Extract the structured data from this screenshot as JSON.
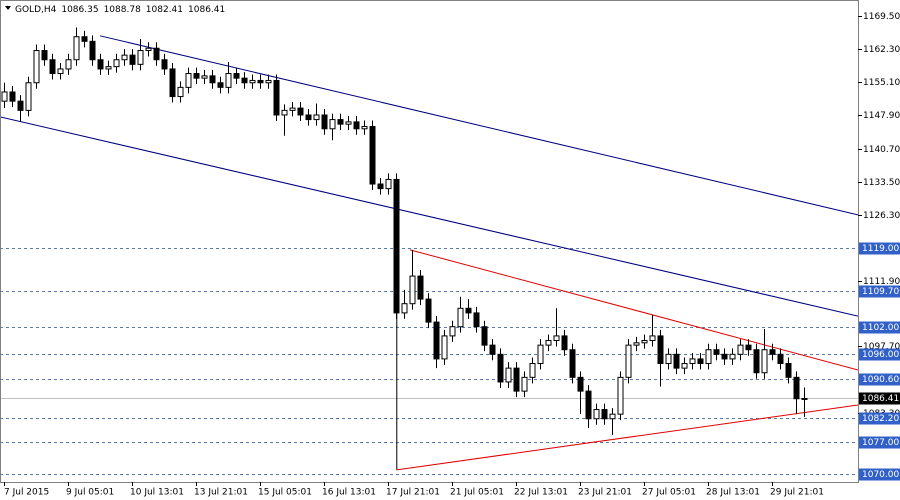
{
  "chart_data": {
    "type": "candlestick",
    "title": "GOLD,H4",
    "categories": [
      "7 Jul 2015",
      null,
      null,
      null,
      null,
      null,
      null,
      null,
      "9 Jul 05:01",
      null,
      null,
      null,
      null,
      null,
      null,
      null,
      "10 Jul 13:01",
      null,
      null,
      null,
      null,
      null,
      null,
      null,
      "13 Jul 21:01",
      null,
      null,
      null,
      null,
      null,
      null,
      null,
      "15 Jul 05:01",
      null,
      null,
      null,
      null,
      null,
      null,
      null,
      "16 Jul 13:01",
      null,
      null,
      null,
      null,
      null,
      null,
      null,
      "17 Jul 21:01",
      null,
      null,
      null,
      null,
      null,
      null,
      null,
      "21 Jul 05:01",
      null,
      null,
      null,
      null,
      null,
      null,
      null,
      "22 Jul 13:01",
      null,
      null,
      null,
      null,
      null,
      null,
      null,
      "23 Jul 21:01",
      null,
      null,
      null,
      null,
      null,
      null,
      null,
      "27 Jul 05:01",
      null,
      null,
      null,
      null,
      null,
      null,
      null,
      "28 Jul 13:01",
      null,
      null,
      null,
      null,
      null,
      null,
      null,
      "29 Jul 21:01",
      null,
      null,
      null,
      null
    ],
    "open": [
      1151,
      1153,
      1151,
      1149,
      1155,
      1162,
      1160,
      1157,
      1158,
      1160,
      1165,
      1164,
      1160,
      1158,
      1158.5,
      1160,
      1161,
      1159,
      1162,
      1162.5,
      1160,
      1158,
      1152,
      1154,
      1157,
      1156,
      1156.5,
      1155,
      1154,
      1157,
      1156,
      1155,
      1155.5,
      1155,
      1155.5,
      1148,
      1149,
      1149.5,
      1148,
      1147,
      1148,
      1145,
      1147,
      1146,
      1146.5,
      1145,
      1145.5,
      1133,
      1132,
      1134,
      1105,
      1107,
      1113,
      1108,
      1103,
      1095,
      1100,
      1102,
      1106,
      1105,
      1102,
      1098,
      1096,
      1090,
      1093,
      1088,
      1091,
      1094,
      1098,
      1099,
      1100,
      1097,
      1091,
      1088,
      1082,
      1084,
      1082,
      1083,
      1091,
      1098,
      1098.5,
      1099,
      1100,
      1094,
      1096,
      1093,
      1094,
      1095,
      1094,
      1097,
      1096,
      1095,
      1096,
      1098,
      1097,
      1092,
      1097,
      1096,
      1094,
      1091,
      1086.35
    ],
    "high": [
      1155,
      1154.3,
      1152.3,
      1156.3,
      1163.3,
      1163.3,
      1161.3,
      1159.3,
      1161.3,
      1167,
      1166.3,
      1165.3,
      1161.3,
      1159.8,
      1161.3,
      1162.3,
      1162.3,
      1164.5,
      1163.8,
      1163.8,
      1161.3,
      1159.3,
      1155.3,
      1158.3,
      1158.3,
      1157.8,
      1157.8,
      1156.3,
      1159.5,
      1158.3,
      1157.3,
      1156.8,
      1156.8,
      1156.8,
      1156.8,
      1150.3,
      1150.8,
      1150.8,
      1149.3,
      1150.5,
      1149.3,
      1148.3,
      1148.3,
      1147.8,
      1147.8,
      1146.8,
      1146.8,
      1134.3,
      1135.3,
      1135.3,
      1110,
      1118.7,
      1114.3,
      1109.3,
      1104.3,
      1101.3,
      1103.3,
      1108.5,
      1108,
      1106.3,
      1103.3,
      1099.3,
      1097.3,
      1094.3,
      1094.3,
      1092.3,
      1095.3,
      1099.3,
      1100.3,
      1106,
      1101.3,
      1098.3,
      1092.3,
      1089.3,
      1085.3,
      1085.3,
      1084.3,
      1092.3,
      1099.3,
      1099.8,
      1100.3,
      1104.6,
      1101.3,
      1097.3,
      1097.3,
      1095.3,
      1096.3,
      1096.3,
      1098.3,
      1098.3,
      1097.3,
      1097.3,
      1099.3,
      1099.3,
      1098.3,
      1101.5,
      1098.3,
      1097.3,
      1095.3,
      1092.3,
      1088.78
    ],
    "low": [
      1149.5,
      1149.7,
      1146.5,
      1147.7,
      1153.7,
      1158.7,
      1155.7,
      1155.7,
      1156.7,
      1158.7,
      1162.7,
      1158.7,
      1156.7,
      1156.7,
      1157.2,
      1158.7,
      1157.7,
      1157.7,
      1160.7,
      1158.7,
      1156.7,
      1150.7,
      1150.7,
      1152.7,
      1154.7,
      1154.7,
      1153.7,
      1152.7,
      1152.7,
      1154.7,
      1153.7,
      1153.7,
      1153.7,
      1153.7,
      1146.7,
      1143.5,
      1147.7,
      1146.7,
      1145.7,
      1145.7,
      1143.7,
      1142.5,
      1144.7,
      1144.7,
      1143.7,
      1143.7,
      1131.7,
      1130.7,
      1130.7,
      1103.7,
      1103.7,
      1105.7,
      1106.7,
      1101.7,
      1093,
      1093.7,
      1098.7,
      1100.7,
      1103.7,
      1100.7,
      1096.7,
      1094.7,
      1088.7,
      1088.7,
      1086.7,
      1086.7,
      1089.7,
      1092.7,
      1096.7,
      1097.7,
      1095.7,
      1089.7,
      1083,
      1080,
      1080.7,
      1080.7,
      1078.5,
      1081.7,
      1089.7,
      1096.7,
      1097.2,
      1097.7,
      1089,
      1092.7,
      1091.7,
      1091.7,
      1092.7,
      1092.7,
      1092.7,
      1094.7,
      1093.7,
      1093.7,
      1094.7,
      1095.7,
      1090.7,
      1090.7,
      1094.7,
      1092.7,
      1089.7,
      1083,
      1082.41
    ],
    "close": [
      1153,
      1151,
      1149,
      1155,
      1162,
      1160,
      1157,
      1158,
      1160,
      1165,
      1164,
      1160,
      1158,
      1158.5,
      1160,
      1161,
      1159,
      1162,
      1162.5,
      1160,
      1158,
      1152,
      1154,
      1157,
      1156,
      1156.5,
      1155,
      1154,
      1157,
      1156,
      1155,
      1155.5,
      1155,
      1155.5,
      1148,
      1149,
      1149.5,
      1148,
      1147,
      1148,
      1145,
      1147,
      1146,
      1146.5,
      1145,
      1145.5,
      1133,
      1132,
      1134,
      1105,
      1107,
      1113,
      1108,
      1103,
      1095,
      1100,
      1102,
      1106,
      1105,
      1102,
      1098,
      1096,
      1090,
      1093,
      1088,
      1091,
      1094,
      1098,
      1099,
      1100,
      1097,
      1091,
      1088,
      1082,
      1084,
      1082,
      1083,
      1091,
      1098,
      1098.5,
      1099,
      1100,
      1094,
      1096,
      1093,
      1094,
      1095,
      1094,
      1097,
      1096,
      1095,
      1096,
      1098,
      1097,
      1092,
      1097,
      1096,
      1094,
      1091,
      1086.35,
      1086.41
    ],
    "up_color": "#ffffff",
    "down_color": "#000000",
    "ylim": [
      1068.26,
      1172.98
    ],
    "yticks": [
      {
        "value": 1169.5,
        "label": "1169.50"
      },
      {
        "value": 1162.3,
        "label": "1162.30"
      },
      {
        "value": 1155.1,
        "label": "1155.10"
      },
      {
        "value": 1147.9,
        "label": "1147.90"
      },
      {
        "value": 1140.7,
        "label": "1140.70"
      },
      {
        "value": 1133.5,
        "label": "1133.50"
      },
      {
        "value": 1126.3,
        "label": "1126.30"
      },
      {
        "value": 1111.9,
        "label": "1111.90"
      },
      {
        "value": 1097.7,
        "label": "1097.70"
      },
      {
        "value": 1083.3,
        "label": "1083.30"
      }
    ],
    "levels": [
      {
        "value": 1119,
        "label": "1119.00"
      },
      {
        "value": 1109.7,
        "label": "1109.70"
      },
      {
        "value": 1102,
        "label": "1102.00"
      },
      {
        "value": 1096,
        "label": "1096.00"
      },
      {
        "value": 1090.6,
        "label": "1090.60"
      },
      {
        "value": 1082.2,
        "label": "1082.20"
      },
      {
        "value": 1077,
        "label": "1077.00"
      },
      {
        "value": 1070,
        "label": "1070.00"
      }
    ],
    "level_color": "#3060c8",
    "lines": [
      {
        "color": "#000080",
        "points": [
          [
            12,
            1165.2
          ],
          [
            106.75,
            1126.3
          ]
        ]
      },
      {
        "color": "#000080",
        "points": [
          [
            -0.5,
            1147.6
          ],
          [
            106.75,
            1104.3
          ]
        ]
      },
      {
        "color": "#e00000",
        "points": [
          [
            50.75,
            1118.7
          ],
          [
            106.75,
            1092.6
          ]
        ]
      },
      {
        "color": "#e00000",
        "points": [
          [
            49.1,
            1070.9
          ],
          [
            106.75,
            1085.0
          ]
        ]
      },
      {
        "color": "#000000",
        "points": [
          [
            49.1,
            1106
          ],
          [
            49.1,
            1070.9
          ]
        ]
      }
    ],
    "grid": false
  }
}
